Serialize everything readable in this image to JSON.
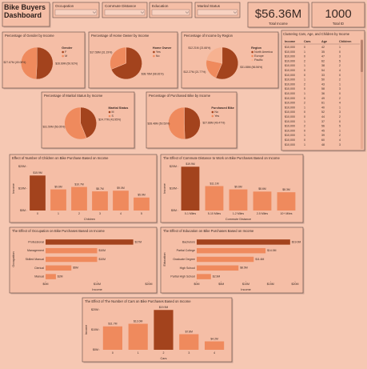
{
  "header": {
    "title": "Bike Buyers Dashboard"
  },
  "slicers": [
    "Occupation",
    "Commute Distance",
    "Education",
    "Marital Status"
  ],
  "kpis": [
    {
      "value": "$56.36M",
      "label": "Total Income"
    },
    {
      "value": "1000",
      "label": "Total ID"
    }
  ],
  "table": {
    "title": "Clustering Cars, Age, and Children by Income",
    "columns": [
      "Income",
      "Cars",
      "Age",
      "Children"
    ],
    "rows": [
      [
        "$10,000",
        0,
        42,
        1
      ],
      [
        "$10,000",
        1,
        35,
        0
      ],
      [
        "$10,000",
        0,
        47,
        3
      ],
      [
        "$10,000",
        2,
        62,
        5
      ],
      [
        "$10,000",
        1,
        38,
        2
      ],
      [
        "$10,000",
        0,
        54,
        4
      ],
      [
        "$10,000",
        0,
        33,
        0
      ],
      [
        "$10,000",
        1,
        50,
        2
      ],
      [
        "$10,000",
        2,
        43,
        1
      ],
      [
        "$10,000",
        0,
        58,
        3
      ],
      [
        "$10,000",
        1,
        36,
        0
      ],
      [
        "$10,000",
        0,
        49,
        2
      ],
      [
        "$10,000",
        2,
        61,
        4
      ],
      [
        "$10,000",
        1,
        40,
        1
      ],
      [
        "$10,000",
        0,
        52,
        3
      ],
      [
        "$10,000",
        0,
        44,
        2
      ],
      [
        "$10,000",
        1,
        37,
        0
      ],
      [
        "$10,000",
        2,
        56,
        5
      ],
      [
        "$10,000",
        0,
        45,
        1
      ],
      [
        "$10,000",
        1,
        39,
        2
      ],
      [
        "$10,000",
        0,
        60,
        4
      ],
      [
        "$10,000",
        1,
        48,
        3
      ]
    ]
  },
  "chart_data": [
    {
      "type": "pie",
      "title": "Percentage of Gender by Income",
      "legend_title": "Gender",
      "labels": [
        "F",
        "M"
      ],
      "values": [
        28.69,
        27.67
      ],
      "value_labels": [
        "$28.69M (50.92%)",
        "$27.67M (49.08%)"
      ],
      "colors": [
        "#a3431d",
        "#ef8a5d"
      ]
    },
    {
      "type": "pie",
      "title": "Percentage of Home Owner by Income",
      "legend_title": "Home Owner",
      "labels": [
        "Yes",
        "No"
      ],
      "values": [
        38.78,
        17.58
      ],
      "value_labels": [
        "$38.78M (68.81%)",
        "$17.58M (31.19%)"
      ],
      "colors": [
        "#a3431d",
        "#ef8a5d"
      ]
    },
    {
      "type": "pie",
      "title": "Percentage of Income by Region",
      "legend_title": "Region",
      "labels": [
        "North America",
        "Europe",
        "Pacific"
      ],
      "values": [
        31.88,
        12.27,
        12.21
      ],
      "value_labels": [
        "$31.88M (56.56%)",
        "$12.27M (21.77%)",
        "$12.21M (21.66%)"
      ],
      "colors": [
        "#a3431d",
        "#ef8a5d",
        "#f7b291"
      ]
    },
    {
      "type": "pie",
      "title": "Percentage of Marital Status by Income",
      "legend_title": "Marital Status",
      "labels": [
        "M",
        "S"
      ],
      "values": [
        24.77,
        31.59
      ],
      "value_labels": [
        "$24.77M (43.95%)",
        "$31.59M (56.05%)"
      ],
      "colors": [
        "#a3431d",
        "#ef8a5d"
      ]
    },
    {
      "type": "pie",
      "title": "Percentage of Purchased Bike by Income",
      "legend_title": "Purchased Bike",
      "labels": [
        "No",
        "Yes"
      ],
      "values": [
        27.88,
        28.48
      ],
      "value_labels": [
        "$27.88M (49.47%)",
        "$28.48M (50.53%)"
      ],
      "colors": [
        "#a3431d",
        "#ef8a5d"
      ]
    },
    {
      "type": "bar",
      "orientation": "vertical",
      "title": "Effect of Number of Children on Bike Purchase Based on Income",
      "xlabel": "Children",
      "ylabel": "Income",
      "categories": [
        "0",
        "1",
        "2",
        "3",
        "4",
        "5"
      ],
      "values": [
        15.9,
        9.6,
        10.7,
        8.7,
        9,
        5.9
      ],
      "value_labels": [
        "$15.9M",
        "$9.6M",
        "$10.7M",
        "$8.7M",
        "$9.0M",
        "$5.9M"
      ],
      "colors": [
        "#a3431d",
        "#ef8a5d",
        "#ef8a5d",
        "#ef8a5d",
        "#ef8a5d",
        "#ef8a5d"
      ],
      "ylim": [
        0,
        20
      ],
      "yticks": [
        {
          "value": 0,
          "label": "$0M"
        },
        {
          "value": 10,
          "label": "$10M"
        },
        {
          "value": 20,
          "label": "$20M"
        }
      ]
    },
    {
      "type": "bar",
      "orientation": "vertical",
      "title": "The Effect of Commute Distance to Work on Bike Purchases Based on Income",
      "xlabel": "Commute Distance",
      "ylabel": "Income",
      "categories": [
        "0-1 Miles",
        "5-10 Miles",
        "1-2 Miles",
        "2-5 Miles",
        "10+ Miles"
      ],
      "values": [
        19.9,
        11.1,
        9.6,
        8.6,
        8.3
      ],
      "value_labels": [
        "$19.9M",
        "$11.1M",
        "$9.6M",
        "$8.6M",
        "$8.3M"
      ],
      "colors": [
        "#a3431d",
        "#ef8a5d",
        "#ef8a5d",
        "#ef8a5d",
        "#ef8a5d"
      ],
      "ylim": [
        0,
        20
      ],
      "yticks": [
        {
          "value": 0,
          "label": "$0M"
        },
        {
          "value": 10,
          "label": "$10M"
        },
        {
          "value": 20,
          "label": "$20M"
        }
      ]
    },
    {
      "type": "bar",
      "orientation": "horizontal",
      "title": "The Effect of Occupation on Bike Purchases Based on Income",
      "xlabel": "Income",
      "ylabel": "Occupation",
      "categories": [
        "Professional",
        "Management",
        "Skilled Manual",
        "Clerical",
        "Manual"
      ],
      "values": [
        17,
        10,
        10,
        5,
        2
      ],
      "value_labels": [
        "$17M",
        "$10M",
        "$10M",
        "$5M",
        "$2M"
      ],
      "colors": [
        "#a3431d",
        "#ef8a5d",
        "#ef8a5d",
        "#ef8a5d",
        "#ef8a5d"
      ],
      "xlim": [
        0,
        20
      ],
      "xticks": [
        {
          "value": 0,
          "label": "$0M"
        },
        {
          "value": 10,
          "label": "$10M"
        },
        {
          "value": 20,
          "label": "$20M"
        }
      ]
    },
    {
      "type": "bar",
      "orientation": "horizontal",
      "title": "The Effect of Education on Bike Purchases Based on Income",
      "xlabel": "Income",
      "ylabel": "Education",
      "categories": [
        "Bachelors",
        "Partial College",
        "Graduate Degree",
        "High School",
        "Partial High School"
      ],
      "values": [
        19,
        14,
        11.6,
        8.5,
        2.9
      ],
      "value_labels": [
        "$19.0M",
        "$14.0M",
        "$11.6M",
        "$8.5M",
        "$2.9M"
      ],
      "colors": [
        "#a3431d",
        "#ef8a5d",
        "#ef8a5d",
        "#ef8a5d",
        "#ef8a5d"
      ],
      "xlim": [
        0,
        20
      ],
      "xticks": [
        {
          "value": 0,
          "label": "$0M"
        },
        {
          "value": 5,
          "label": "$5M"
        },
        {
          "value": 10,
          "label": "$10M"
        },
        {
          "value": 15,
          "label": "$15M"
        },
        {
          "value": 20,
          "label": "$20M"
        }
      ]
    },
    {
      "type": "bar",
      "orientation": "vertical",
      "title": "The Effect of The Number of Cars on Bike Purchases Based on Income",
      "xlabel": "Cars",
      "ylabel": "Income",
      "categories": [
        "0",
        "1",
        "2",
        "3",
        "4"
      ],
      "values": [
        11.7,
        13,
        19.9,
        7.8,
        4.2
      ],
      "value_labels": [
        "$11.7M",
        "$13.0M",
        "$19.9M",
        "$7.8M",
        "$4.2M"
      ],
      "colors": [
        "#ef8a5d",
        "#ef8a5d",
        "#a3431d",
        "#ef8a5d",
        "#ef8a5d"
      ],
      "ylim": [
        0,
        20
      ],
      "yticks": [
        {
          "value": 0,
          "label": "$0M"
        },
        {
          "value": 10,
          "label": "$10M"
        },
        {
          "value": 20,
          "label": "$20M"
        }
      ]
    }
  ]
}
